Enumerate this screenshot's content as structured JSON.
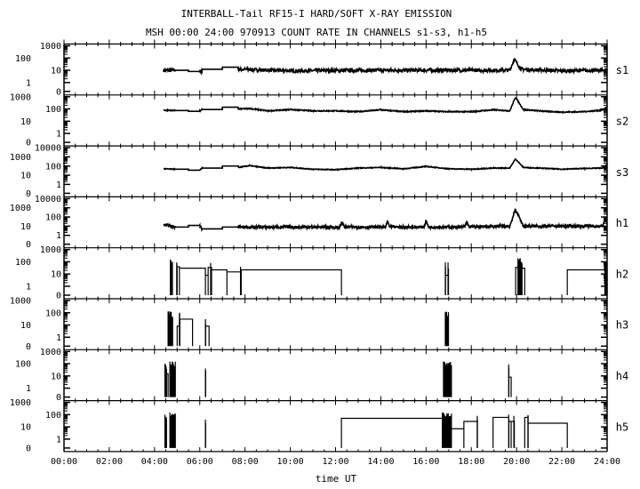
{
  "header": {
    "title": "INTERBALL-Tail RF15-I HARD/SOFT X-RAY EMISSION",
    "subtitle": "MSH 00:00 24:00 970913  COUNT RATE IN CHANNELS s1-s3, h1-h5"
  },
  "chart_data": {
    "type": "line",
    "title": "INTERBALL-Tail RF15-I HARD/SOFT X-RAY EMISSION",
    "subtitle": "MSH 00:00 24:00 970913  COUNT RATE IN CHANNELS s1-s3, h1-h5",
    "xlabel": "time UT",
    "xlim_hours": [
      0,
      24
    ],
    "x_tick_labels": [
      "00:00",
      "02:00",
      "04:00",
      "06:00",
      "08:00",
      "10:00",
      "12:00",
      "14:00",
      "16:00",
      "18:00",
      "20:00",
      "22:00",
      "24:00"
    ],
    "y_scale": "log (with 0 at bottom)",
    "grid": false,
    "colors": {
      "line": "#000000",
      "background": "#ffffff"
    },
    "panels": [
      {
        "name": "s1",
        "yticks": [
          "1000",
          "100",
          "10",
          "1",
          "0"
        ],
        "points": [
          [
            4.4,
            10
          ],
          [
            4.9,
            10
          ],
          [
            4.9,
            10
          ],
          [
            5.5,
            10
          ],
          [
            5.5,
            8
          ],
          [
            6.0,
            8
          ],
          [
            6.1,
            8
          ],
          [
            6.1,
            12
          ],
          [
            7.0,
            12
          ],
          [
            7.0,
            18
          ],
          [
            7.7,
            18
          ],
          [
            7.7,
            12
          ],
          [
            10,
            9
          ],
          [
            14,
            10
          ],
          [
            17,
            10
          ],
          [
            19.7,
            10
          ],
          [
            19.9,
            80
          ],
          [
            20.2,
            12
          ],
          [
            22,
            9
          ],
          [
            24,
            10
          ]
        ],
        "noisy": [
          [
            4.4,
            4.9
          ],
          [
            6.0,
            6.1
          ],
          [
            7.7,
            24
          ]
        ]
      },
      {
        "name": "s2",
        "yticks": [
          "1000",
          "100",
          "10",
          "1",
          "0"
        ],
        "points": [
          [
            4.4,
            80
          ],
          [
            4.9,
            75
          ],
          [
            5.5,
            75
          ],
          [
            5.5,
            65
          ],
          [
            6.0,
            65
          ],
          [
            6.1,
            90
          ],
          [
            7.0,
            90
          ],
          [
            7.0,
            140
          ],
          [
            7.7,
            140
          ],
          [
            7.7,
            100
          ],
          [
            8.2,
            110
          ],
          [
            9,
            70
          ],
          [
            10,
            90
          ],
          [
            11,
            70
          ],
          [
            12,
            70
          ],
          [
            13,
            60
          ],
          [
            14,
            85
          ],
          [
            15,
            60
          ],
          [
            16,
            70
          ],
          [
            17,
            60
          ],
          [
            18,
            60
          ],
          [
            19,
            85
          ],
          [
            19.7,
            70
          ],
          [
            19.95,
            900
          ],
          [
            20.3,
            90
          ],
          [
            21,
            70
          ],
          [
            22,
            55
          ],
          [
            23,
            60
          ],
          [
            23.8,
            80
          ],
          [
            24,
            150
          ]
        ],
        "noisy": [
          [
            4.4,
            4.9
          ],
          [
            6.0,
            6.1
          ],
          [
            7.7,
            24
          ]
        ]
      },
      {
        "name": "s3",
        "yticks": [
          "10000",
          "1000",
          "100",
          "10",
          "1",
          "0"
        ],
        "points": [
          [
            4.4,
            50
          ],
          [
            4.9,
            45
          ],
          [
            5.5,
            45
          ],
          [
            5.5,
            35
          ],
          [
            6.0,
            35
          ],
          [
            6.1,
            60
          ],
          [
            7.0,
            60
          ],
          [
            7.0,
            100
          ],
          [
            7.7,
            100
          ],
          [
            7.7,
            70
          ],
          [
            8.2,
            110
          ],
          [
            9,
            60
          ],
          [
            10,
            70
          ],
          [
            11,
            45
          ],
          [
            12,
            40
          ],
          [
            13,
            60
          ],
          [
            14,
            70
          ],
          [
            15,
            50
          ],
          [
            16,
            90
          ],
          [
            17,
            50
          ],
          [
            18,
            45
          ],
          [
            19,
            60
          ],
          [
            19.7,
            60
          ],
          [
            19.95,
            600
          ],
          [
            20.3,
            70
          ],
          [
            21,
            60
          ],
          [
            22,
            45
          ],
          [
            23,
            55
          ],
          [
            23.8,
            60
          ],
          [
            24,
            150
          ]
        ],
        "noisy": [
          [
            4.4,
            4.9
          ],
          [
            6.0,
            6.1
          ],
          [
            7.7,
            24
          ]
        ]
      },
      {
        "name": "h1",
        "yticks": [
          "10000",
          "1000",
          "100",
          "10",
          "1",
          "0"
        ],
        "points": [
          [
            4.4,
            15
          ],
          [
            4.9,
            8
          ],
          [
            5.5,
            8
          ],
          [
            5.5,
            12
          ],
          [
            6.0,
            12
          ],
          [
            6.1,
            5
          ],
          [
            7.0,
            5
          ],
          [
            7.0,
            8
          ],
          [
            7.7,
            8
          ],
          [
            12.2,
            8
          ],
          [
            12.3,
            25
          ],
          [
            12.4,
            8
          ],
          [
            14.2,
            8
          ],
          [
            14.3,
            30
          ],
          [
            14.4,
            8
          ],
          [
            15.9,
            8
          ],
          [
            16.0,
            40
          ],
          [
            16.1,
            8
          ],
          [
            17.7,
            8
          ],
          [
            17.8,
            30
          ],
          [
            17.9,
            8
          ],
          [
            19.7,
            10
          ],
          [
            19.95,
            700
          ],
          [
            20.3,
            10
          ],
          [
            23.8,
            10
          ],
          [
            23.9,
            60
          ],
          [
            24,
            20
          ]
        ],
        "noisy": [
          [
            4.4,
            4.9
          ],
          [
            6.0,
            6.1
          ],
          [
            7.7,
            24
          ]
        ]
      },
      {
        "name": "h2",
        "yticks": [
          "1000",
          "100",
          "10",
          "1",
          "0"
        ],
        "steps": [
          [
            5.0,
            5.1,
            40
          ],
          [
            5.1,
            6.25,
            30
          ],
          [
            6.25,
            6.37,
            8
          ],
          [
            6.37,
            6.52,
            35
          ],
          [
            6.52,
            7.2,
            22
          ],
          [
            7.2,
            7.83,
            15
          ],
          [
            7.83,
            12.26,
            22
          ],
          [
            16.85,
            16.99,
            8
          ],
          [
            19.96,
            20.06,
            35
          ],
          [
            20.24,
            20.36,
            30
          ],
          [
            22.24,
            24,
            22
          ]
        ],
        "bursts": [
          [
            4.7,
            4.79,
            150
          ],
          [
            4.98,
            4.99,
            90
          ],
          [
            6.48,
            6.5,
            80
          ],
          [
            7.8,
            7.81,
            40
          ],
          [
            16.85,
            16.86,
            90
          ],
          [
            16.97,
            16.99,
            90
          ],
          [
            20.06,
            20.24,
            200
          ],
          [
            23.9,
            23.95,
            90
          ]
        ]
      },
      {
        "name": "h3",
        "yticks": [
          "1000",
          "100",
          "10",
          "1",
          "0"
        ],
        "steps": [
          [
            5.0,
            5.12,
            8
          ],
          [
            5.12,
            5.68,
            30
          ],
          [
            6.25,
            6.41,
            8
          ]
        ],
        "bursts": [
          [
            4.6,
            4.8,
            130
          ],
          [
            5.1,
            5.11,
            100
          ],
          [
            6.25,
            6.26,
            30
          ],
          [
            16.85,
            16.99,
            120
          ]
        ]
      },
      {
        "name": "h4",
        "yticks": [
          "1000",
          "100",
          "10",
          "1",
          "0"
        ],
        "steps": [
          [
            4.53,
            4.6,
            15
          ],
          [
            19.65,
            19.76,
            8
          ]
        ],
        "bursts": [
          [
            4.46,
            4.53,
            100
          ],
          [
            4.68,
            4.92,
            150
          ],
          [
            6.25,
            6.26,
            40
          ],
          [
            16.77,
            17.12,
            150
          ],
          [
            19.65,
            19.66,
            90
          ]
        ]
      },
      {
        "name": "h5",
        "yticks": [
          "1000",
          "100",
          "10",
          "1",
          "0"
        ],
        "steps": [
          [
            12.26,
            16.72,
            50
          ],
          [
            17.12,
            17.67,
            7
          ],
          [
            17.67,
            18.27,
            28
          ],
          [
            18.96,
            19.65,
            60
          ],
          [
            19.65,
            19.76,
            28
          ],
          [
            19.76,
            19.9,
            28
          ],
          [
            20.36,
            20.51,
            60
          ],
          [
            20.51,
            22.24,
            20
          ]
        ],
        "bursts": [
          [
            4.46,
            4.53,
            100
          ],
          [
            4.68,
            4.92,
            150
          ],
          [
            6.25,
            6.26,
            40
          ],
          [
            16.72,
            17.12,
            150
          ],
          [
            18.26,
            18.27,
            80
          ],
          [
            19.65,
            19.66,
            100
          ],
          [
            19.88,
            19.89,
            80
          ],
          [
            20.5,
            20.51,
            90
          ]
        ]
      }
    ]
  }
}
